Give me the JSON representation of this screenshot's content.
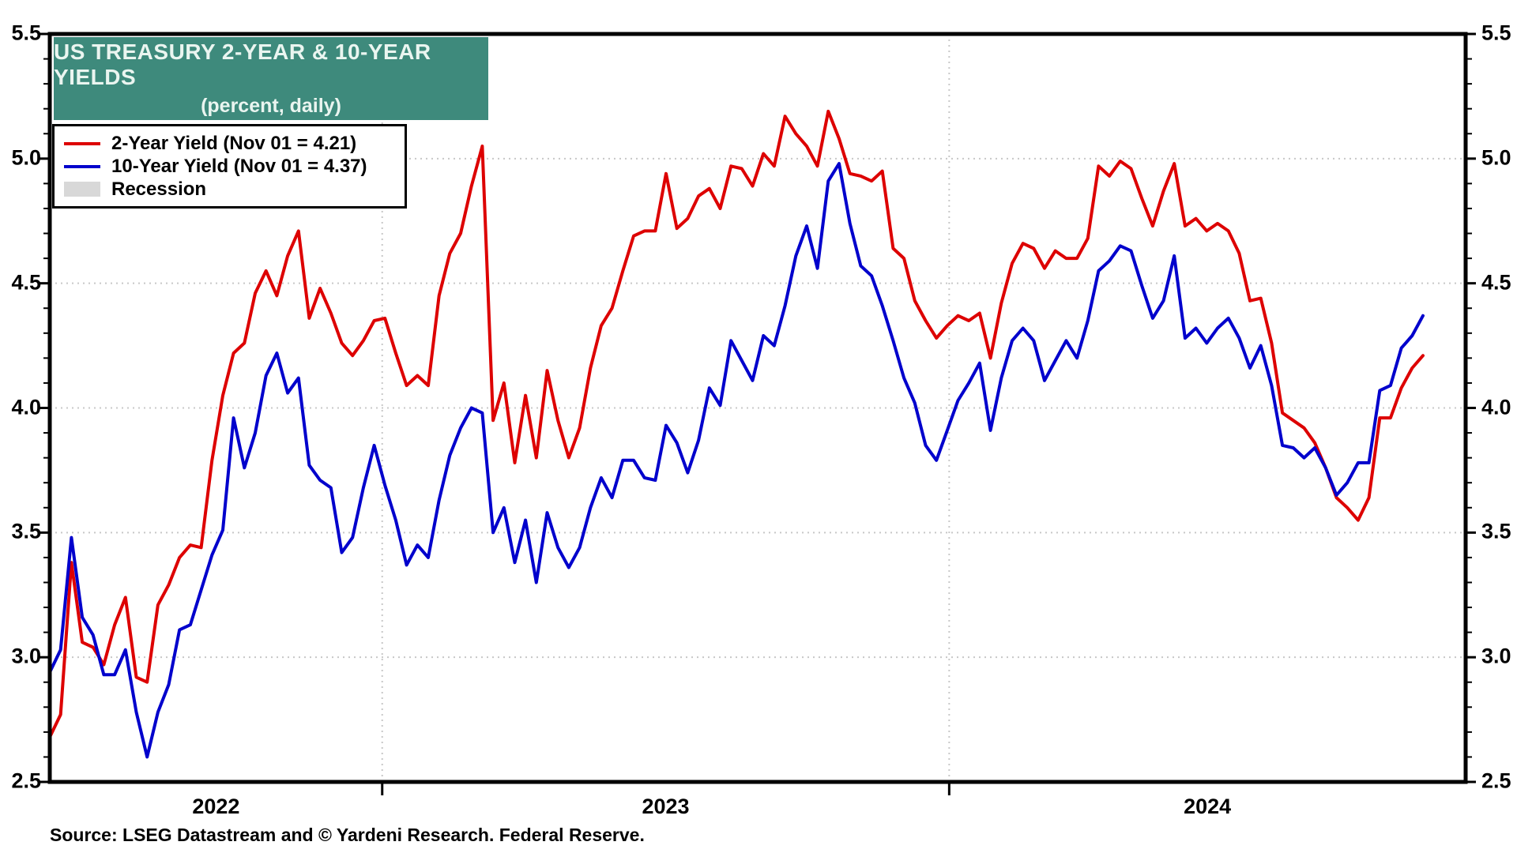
{
  "title": {
    "line1": "US TREASURY 2-YEAR & 10-YEAR YIELDS",
    "line2": "(percent, daily)"
  },
  "legend": {
    "items": [
      {
        "label": "2-Year Yield (Nov 01 = 4.21)",
        "swatch": "line",
        "color": "#dd0000"
      },
      {
        "label": "10-Year Yield (Nov 01 = 4.37)",
        "swatch": "line",
        "color": "#0000cc"
      },
      {
        "label": "Recession",
        "swatch": "box",
        "color": "#d8d8d8"
      }
    ]
  },
  "source_note": "Source: LSEG Datastream and © Yardeni Research. Federal Reserve.",
  "colors": {
    "title_box_bg": "#3e8a7c",
    "title_text": "#eaf5f0",
    "series_2yr": "#dd0000",
    "series_10yr": "#0000cc",
    "gridline": "#c8c8c8",
    "axis": "#000000",
    "recession": "#d8d8d8"
  },
  "axes": {
    "y_tick_labels": [
      "5.5",
      "5.0",
      "4.5",
      "4.0",
      "3.5",
      "3.0",
      "2.5"
    ],
    "x_tick_labels": [
      "2022",
      "2023",
      "2024"
    ]
  },
  "chart_data": {
    "type": "line",
    "title": "US TREASURY 2-YEAR & 10-YEAR YIELDS",
    "subtitle": "(percent, daily)",
    "ylabel": "percent",
    "ylim": [
      2.5,
      5.5
    ],
    "y_major_step": 0.5,
    "y_minor_step": 0.1,
    "grid_y_values": [
      5.0,
      4.5,
      4.0,
      3.5,
      3.0
    ],
    "grid_x_dates": [
      "2023-01-01",
      "2024-01-01"
    ],
    "x_start": "2022-06-01",
    "x_end": "2024-11-01",
    "x_step_days": 7,
    "legend_position": "top-left",
    "recession_bands": [],
    "series": [
      {
        "name": "2-Year Yield (Nov 01 = 4.21)",
        "color": "#dd0000",
        "last_value": 4.21,
        "values": [
          2.68,
          2.77,
          3.38,
          3.06,
          3.04,
          2.97,
          3.13,
          3.24,
          2.92,
          2.9,
          3.21,
          3.29,
          3.4,
          3.45,
          3.44,
          3.79,
          4.05,
          4.22,
          4.26,
          4.46,
          4.55,
          4.45,
          4.61,
          4.71,
          4.36,
          4.48,
          4.38,
          4.26,
          4.21,
          4.27,
          4.35,
          4.36,
          4.22,
          4.09,
          4.13,
          4.09,
          4.45,
          4.62,
          4.7,
          4.89,
          5.05,
          3.95,
          4.1,
          3.78,
          4.05,
          3.8,
          4.15,
          3.95,
          3.8,
          3.92,
          4.16,
          4.33,
          4.4,
          4.55,
          4.69,
          4.71,
          4.71,
          4.94,
          4.72,
          4.76,
          4.85,
          4.88,
          4.8,
          4.97,
          4.96,
          4.89,
          5.02,
          4.97,
          5.17,
          5.1,
          5.05,
          4.97,
          5.19,
          5.08,
          4.94,
          4.93,
          4.91,
          4.95,
          4.64,
          4.6,
          4.43,
          4.35,
          4.28,
          4.33,
          4.37,
          4.35,
          4.38,
          4.2,
          4.42,
          4.58,
          4.66,
          4.64,
          4.56,
          4.63,
          4.6,
          4.6,
          4.68,
          4.97,
          4.93,
          4.99,
          4.96,
          4.84,
          4.73,
          4.87,
          4.98,
          4.73,
          4.76,
          4.71,
          4.74,
          4.71,
          4.62,
          4.43,
          4.44,
          4.26,
          3.98,
          3.95,
          3.92,
          3.86,
          3.76,
          3.64,
          3.6,
          3.55,
          3.64,
          3.96,
          3.96,
          4.08,
          4.16,
          4.21
        ]
      },
      {
        "name": "10-Year Yield (Nov 01 = 4.37)",
        "color": "#0000cc",
        "last_value": 4.37,
        "values": [
          2.94,
          3.03,
          3.48,
          3.16,
          3.09,
          2.93,
          2.93,
          3.03,
          2.78,
          2.6,
          2.78,
          2.89,
          3.11,
          3.13,
          3.27,
          3.41,
          3.51,
          3.96,
          3.76,
          3.9,
          4.13,
          4.22,
          4.06,
          4.12,
          3.77,
          3.71,
          3.68,
          3.42,
          3.48,
          3.68,
          3.85,
          3.69,
          3.55,
          3.37,
          3.45,
          3.4,
          3.63,
          3.81,
          3.92,
          4.0,
          3.98,
          3.5,
          3.6,
          3.38,
          3.55,
          3.3,
          3.58,
          3.44,
          3.36,
          3.44,
          3.6,
          3.72,
          3.64,
          3.79,
          3.79,
          3.72,
          3.71,
          3.93,
          3.86,
          3.74,
          3.87,
          4.08,
          4.01,
          4.27,
          4.19,
          4.11,
          4.29,
          4.25,
          4.41,
          4.61,
          4.73,
          4.56,
          4.91,
          4.98,
          4.74,
          4.57,
          4.53,
          4.41,
          4.27,
          4.12,
          4.02,
          3.85,
          3.79,
          3.91,
          4.03,
          4.1,
          4.18,
          3.91,
          4.12,
          4.27,
          4.32,
          4.27,
          4.11,
          4.19,
          4.27,
          4.2,
          4.35,
          4.55,
          4.59,
          4.65,
          4.63,
          4.49,
          4.36,
          4.43,
          4.61,
          4.28,
          4.32,
          4.26,
          4.32,
          4.36,
          4.28,
          4.16,
          4.25,
          4.09,
          3.85,
          3.84,
          3.8,
          3.84,
          3.76,
          3.65,
          3.7,
          3.78,
          3.78,
          4.07,
          4.09,
          4.24,
          4.29,
          4.37
        ]
      }
    ]
  }
}
